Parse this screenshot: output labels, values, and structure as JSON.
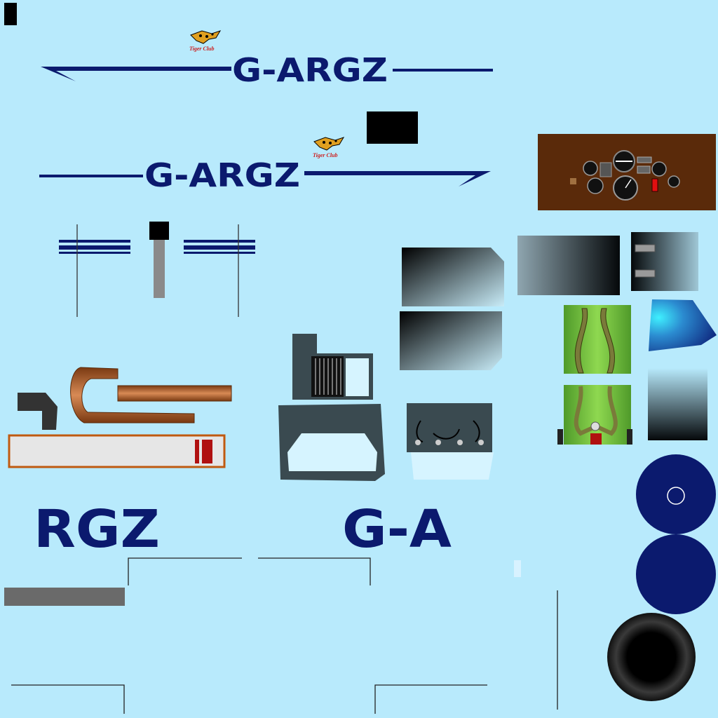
{
  "registration": {
    "top": "G-ARGZ",
    "middle": "G-ARGZ",
    "left_part": "RGZ",
    "right_part": "G-A"
  },
  "logo": {
    "name": "tiger-club-logo",
    "text": "Tiger Club"
  },
  "colors": {
    "background": "#b8eafc",
    "navy": "#0b1a6e",
    "copper": "#9a5020",
    "panel_wood": "#5a2a0a",
    "olive_green": "#6fb83a",
    "slate": "#3a4a50",
    "red": "#b01010"
  }
}
